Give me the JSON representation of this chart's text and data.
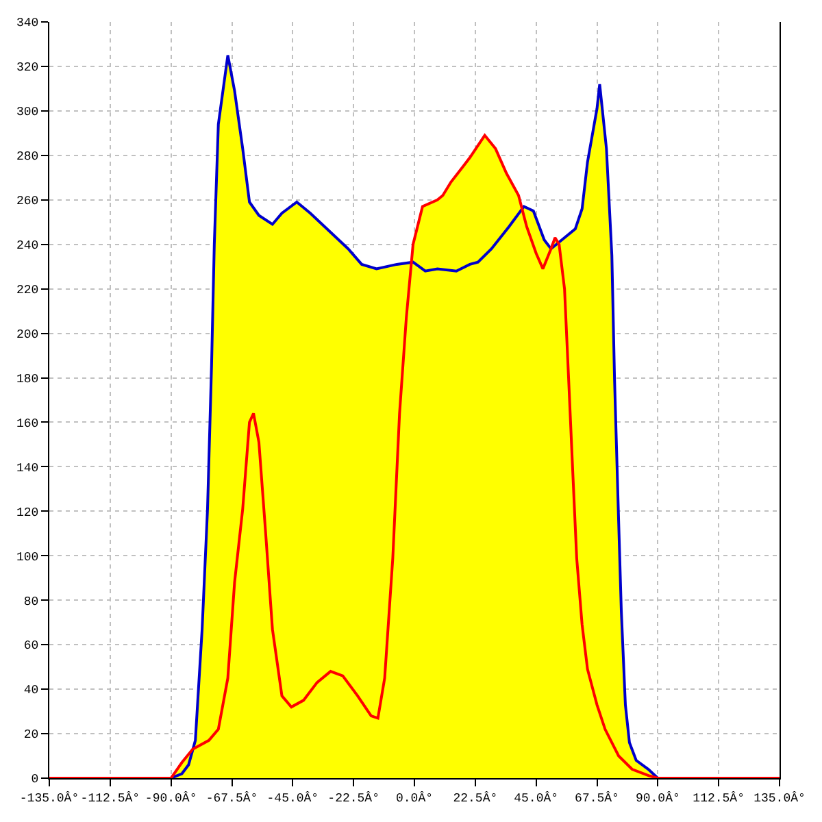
{
  "chart_data": {
    "type": "line",
    "series": [
      {
        "type": "area",
        "color": "#ffff00",
        "x": [
          -90,
          -86,
          -82,
          -81,
          -78.5,
          -76.5,
          -75,
          -74,
          -72.5,
          -69,
          -66.5,
          -63.5,
          -61,
          -57.5,
          -52.5,
          -49,
          -43.5,
          -38.5,
          -31.5,
          -24.5,
          -19.5,
          -14,
          -6.5,
          -1,
          -0.5,
          3,
          8.5,
          10.5,
          13.5,
          18,
          20.5,
          26,
          30,
          34,
          38.5,
          40,
          40.5,
          44,
          48,
          50.5,
          52,
          53,
          54.5,
          59.5,
          62,
          64,
          67.5,
          68.5,
          71,
          73,
          74,
          75.5,
          76.5,
          78,
          79.5,
          82,
          86.5,
          90
        ],
        "values": [
          0,
          7,
          13,
          17,
          67,
          121,
          186,
          240,
          294,
          325,
          309,
          283,
          259,
          253,
          249,
          254,
          259,
          254,
          246,
          238,
          231,
          229,
          231,
          232,
          240,
          257,
          260,
          262,
          268,
          275,
          279,
          289,
          283,
          272,
          262,
          256,
          257,
          255,
          242,
          238,
          243,
          241,
          242,
          247,
          256,
          277,
          301,
          312,
          283,
          235,
          179,
          116,
          75,
          33,
          16,
          8,
          4,
          0
        ]
      },
      {
        "color": "#0000cc",
        "x": [
          -135,
          -90,
          -86,
          -83.5,
          -81,
          -78.5,
          -76.5,
          -75,
          -74,
          -72.5,
          -69,
          -66.5,
          -63.5,
          -61,
          -57.5,
          -52.5,
          -49,
          -43.5,
          -38.5,
          -31.5,
          -24.5,
          -19.5,
          -14,
          -6.5,
          -0.5,
          4,
          8.5,
          15.5,
          20.5,
          23.5,
          28.5,
          35,
          40.5,
          44,
          48,
          50.5,
          54.5,
          59.5,
          62,
          64,
          67.5,
          68.5,
          71,
          73,
          74,
          75.5,
          76.5,
          78,
          79.5,
          82,
          86.5,
          90,
          135
        ],
        "values": [
          0,
          0,
          2,
          6,
          17,
          67,
          121,
          186,
          240,
          294,
          325,
          309,
          283,
          259,
          253,
          249,
          254,
          259,
          254,
          246,
          238,
          231,
          229,
          231,
          232,
          228,
          229,
          228,
          231,
          232,
          238,
          248,
          257,
          255,
          242,
          238,
          242,
          247,
          256,
          277,
          301,
          312,
          283,
          235,
          179,
          116,
          75,
          33,
          16,
          8,
          4,
          0,
          0
        ]
      },
      {
        "color": "#ff0000",
        "x": [
          -135,
          -90,
          -86,
          -82,
          -76,
          -72.5,
          -69,
          -66.5,
          -63.5,
          -61,
          -59.5,
          -57.5,
          -55,
          -52.5,
          -49,
          -45.5,
          -41,
          -36,
          -31,
          -26.5,
          -21,
          -16,
          -13.5,
          -11,
          -8,
          -5.5,
          -3,
          -0.5,
          3,
          8.5,
          10.5,
          13.5,
          18,
          20.5,
          26,
          30,
          34,
          38.5,
          41.5,
          45,
          47.5,
          50.5,
          52,
          53.5,
          55.5,
          57,
          58.5,
          60,
          62,
          64,
          67.5,
          70.5,
          75.5,
          80.5,
          87,
          90,
          135
        ],
        "values": [
          0,
          0,
          7,
          13,
          17,
          22,
          45,
          88,
          121,
          160,
          164,
          151,
          110,
          67,
          37,
          32,
          35,
          43,
          48,
          46,
          37,
          28,
          27,
          45,
          99,
          164,
          207,
          240,
          257,
          260,
          262,
          268,
          275,
          279,
          289,
          283,
          272,
          262,
          248,
          236,
          229,
          238,
          243,
          240,
          220,
          180,
          139,
          99,
          69,
          49,
          33,
          22,
          10,
          4,
          1,
          0,
          0
        ]
      }
    ],
    "xlim": [
      -135,
      135
    ],
    "xticks": [
      {
        "value": -135,
        "label": "-135.0Â°"
      },
      {
        "value": -112.5,
        "label": "-112.5Â°"
      },
      {
        "value": -90,
        "label": "-90.0Â°"
      },
      {
        "value": -67.5,
        "label": "-67.5Â°"
      },
      {
        "value": -45,
        "label": "-45.0Â°"
      },
      {
        "value": -22.5,
        "label": "-22.5Â°"
      },
      {
        "value": 0,
        "label": "0.0Â°"
      },
      {
        "value": 22.5,
        "label": "22.5Â°"
      },
      {
        "value": 45,
        "label": "45.0Â°"
      },
      {
        "value": 67.5,
        "label": "67.5Â°"
      },
      {
        "value": 90,
        "label": "90.0Â°"
      },
      {
        "value": 112.5,
        "label": "112.5Â°"
      },
      {
        "value": 135,
        "label": "135.0Â°"
      }
    ],
    "ylim": [
      0,
      340
    ],
    "yticks": [
      0,
      20,
      40,
      60,
      80,
      100,
      120,
      140,
      160,
      180,
      200,
      220,
      240,
      260,
      280,
      300,
      320,
      340
    ],
    "grid": true
  }
}
